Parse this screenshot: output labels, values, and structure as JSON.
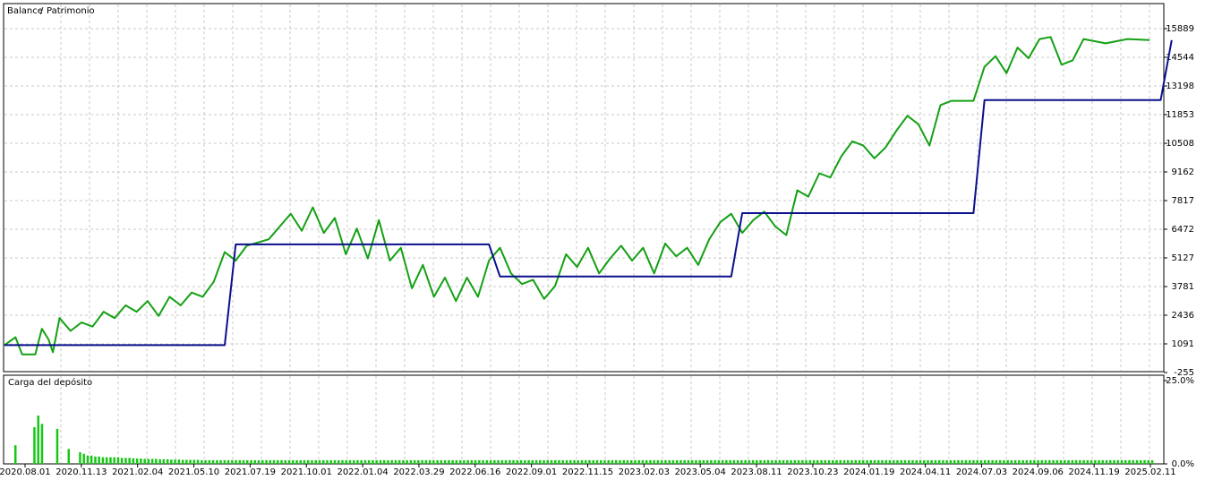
{
  "chart_data": [
    {
      "type": "line",
      "legend": {
        "labels": [
          "Balance",
          "Patrimonio"
        ],
        "placement": "top-left"
      },
      "series": [
        {
          "name": "Balance",
          "color": "#0a0f8c",
          "points": [
            [
              0,
              1030
            ],
            [
              0.5,
              1030
            ],
            [
              1.0,
              1030
            ],
            [
              1.05,
              5760
            ],
            [
              2.2,
              5760
            ],
            [
              2.25,
              4250
            ],
            [
              3.3,
              4250
            ],
            [
              3.35,
              7230
            ],
            [
              4.4,
              7230
            ],
            [
              4.45,
              12540
            ],
            [
              5.25,
              12540
            ],
            [
              5.3,
              15350
            ]
          ]
        },
        {
          "name": "Patrimonio",
          "color": "#14a014",
          "points": [
            [
              0,
              1030
            ],
            [
              0.05,
              1400
            ],
            [
              0.08,
              600
            ],
            [
              0.14,
              600
            ],
            [
              0.17,
              1800
            ],
            [
              0.2,
              1300
            ],
            [
              0.22,
              700
            ],
            [
              0.25,
              2300
            ],
            [
              0.3,
              1700
            ],
            [
              0.35,
              2100
            ],
            [
              0.4,
              1900
            ],
            [
              0.45,
              2600
            ],
            [
              0.5,
              2300
            ],
            [
              0.55,
              2900
            ],
            [
              0.6,
              2600
            ],
            [
              0.65,
              3100
            ],
            [
              0.7,
              2400
            ],
            [
              0.75,
              3300
            ],
            [
              0.8,
              2900
            ],
            [
              0.85,
              3500
            ],
            [
              0.9,
              3300
            ],
            [
              0.95,
              4000
            ],
            [
              1.0,
              5400
            ],
            [
              1.05,
              5000
            ],
            [
              1.1,
              5700
            ],
            [
              1.2,
              6000
            ],
            [
              1.25,
              6600
            ],
            [
              1.3,
              7200
            ],
            [
              1.35,
              6400
            ],
            [
              1.4,
              7500
            ],
            [
              1.45,
              6300
            ],
            [
              1.5,
              7000
            ],
            [
              1.55,
              5300
            ],
            [
              1.6,
              6500
            ],
            [
              1.65,
              5100
            ],
            [
              1.7,
              6900
            ],
            [
              1.75,
              5000
            ],
            [
              1.8,
              5600
            ],
            [
              1.85,
              3700
            ],
            [
              1.9,
              4800
            ],
            [
              1.95,
              3300
            ],
            [
              2.0,
              4200
            ],
            [
              2.05,
              3100
            ],
            [
              2.1,
              4200
            ],
            [
              2.15,
              3300
            ],
            [
              2.2,
              5000
            ],
            [
              2.25,
              5600
            ],
            [
              2.3,
              4400
            ],
            [
              2.35,
              3900
            ],
            [
              2.4,
              4100
            ],
            [
              2.45,
              3200
            ],
            [
              2.5,
              3800
            ],
            [
              2.55,
              5300
            ],
            [
              2.6,
              4700
            ],
            [
              2.65,
              5600
            ],
            [
              2.7,
              4400
            ],
            [
              2.75,
              5100
            ],
            [
              2.8,
              5700
            ],
            [
              2.85,
              5000
            ],
            [
              2.9,
              5600
            ],
            [
              2.95,
              4400
            ],
            [
              3.0,
              5800
            ],
            [
              3.05,
              5200
            ],
            [
              3.1,
              5600
            ],
            [
              3.15,
              4800
            ],
            [
              3.2,
              6000
            ],
            [
              3.25,
              6800
            ],
            [
              3.3,
              7200
            ],
            [
              3.35,
              6300
            ],
            [
              3.4,
              6900
            ],
            [
              3.45,
              7300
            ],
            [
              3.5,
              6600
            ],
            [
              3.55,
              6200
            ],
            [
              3.6,
              8300
            ],
            [
              3.65,
              8000
            ],
            [
              3.7,
              9100
            ],
            [
              3.75,
              8900
            ],
            [
              3.8,
              9900
            ],
            [
              3.85,
              10600
            ],
            [
              3.9,
              10400
            ],
            [
              3.95,
              9800
            ],
            [
              4.0,
              10300
            ],
            [
              4.05,
              11100
            ],
            [
              4.1,
              11800
            ],
            [
              4.15,
              11400
            ],
            [
              4.2,
              10400
            ],
            [
              4.25,
              12300
            ],
            [
              4.3,
              12500
            ],
            [
              4.35,
              12500
            ],
            [
              4.4,
              12500
            ],
            [
              4.45,
              14100
            ],
            [
              4.5,
              14600
            ],
            [
              4.55,
              13800
            ],
            [
              4.6,
              15000
            ],
            [
              4.65,
              14500
            ],
            [
              4.7,
              15400
            ],
            [
              4.75,
              15500
            ],
            [
              4.8,
              14200
            ],
            [
              4.85,
              14400
            ],
            [
              4.9,
              15400
            ],
            [
              5.0,
              15200
            ],
            [
              5.1,
              15400
            ],
            [
              5.2,
              15350
            ]
          ]
        }
      ],
      "y_ticks": [
        "15889",
        "14544",
        "13198",
        "11853",
        "10508",
        "9162",
        "7817",
        "6472",
        "5127",
        "3781",
        "2436",
        "1091",
        "-255"
      ],
      "ylim": [
        -255,
        15889
      ],
      "grid": true
    },
    {
      "type": "bar",
      "title": "Carga del depósito",
      "color": "#14c814",
      "y_ticks": [
        "25.0%",
        "0.0%"
      ],
      "ylim": [
        0,
        25
      ],
      "values": [
        5.6,
        0,
        0,
        0,
        0,
        11,
        14.5,
        12,
        0,
        0,
        0,
        10.5,
        0,
        0,
        4.5,
        0,
        0,
        3.5,
        3,
        2.5,
        2.5,
        2.2,
        2.2,
        2,
        2,
        2,
        2,
        2,
        1.8,
        1.8,
        1.8,
        1.7,
        1.6,
        1.6,
        1.5,
        1.5,
        1.5,
        1.5,
        1.4,
        1.4,
        1.4,
        1.3,
        1.3,
        1.3,
        1.2,
        1.2,
        1.2,
        1.2,
        1.2,
        1.1,
        1.1,
        1.1,
        1.1,
        1.1,
        1.1,
        1.1,
        1.1,
        1.1,
        1.1,
        1.1,
        1.1,
        1.1,
        1.1,
        1.1,
        1.1,
        1.1,
        1.1,
        1.1,
        1.1,
        1.1,
        1.1,
        1.1,
        1.1,
        1.1,
        1.1,
        1.1,
        1.1,
        1.1,
        1.1,
        1.1,
        1.1,
        1.1,
        1.1,
        1.1,
        1.1,
        1.1,
        1.1,
        1.1,
        1.1,
        1.1,
        1.1,
        1.1,
        1.1,
        1.1,
        1.1,
        1.1,
        1.1,
        1.1,
        1.1,
        1.1,
        1.1,
        1.1,
        1.1,
        1.1,
        1.1,
        1.1,
        1.1,
        1.1,
        1.1,
        1.1,
        1.1,
        1.1,
        1.1,
        1.1,
        1.1,
        1.1,
        1.1,
        1.1,
        1.1,
        1.1,
        1.1,
        1.1,
        1.1,
        1.1,
        1.1,
        1.1,
        1.1,
        1.1,
        1.1,
        1.1,
        1.1,
        1.1,
        1.1,
        1.1,
        1.1,
        1.1,
        1.1,
        1.1,
        1.1,
        1.1,
        1.1,
        1.1,
        1.1,
        1.1,
        1.1,
        1.1,
        1.1,
        1.1,
        1.1,
        1.1,
        1.1,
        1.1,
        1.1,
        1.1,
        1.1,
        1.1,
        1.1,
        1.1,
        1.1,
        1.1,
        1.1,
        1.1,
        1.1,
        1.1,
        1.1,
        1.1,
        1.1,
        1.1,
        1.1,
        1.1,
        1.1,
        1.1,
        1.1,
        1.1,
        1.1,
        1.1,
        1.1,
        1.1,
        1.1,
        1.1,
        1.1,
        1.1,
        1.1,
        1.1,
        1.1,
        1.1,
        1.1,
        1.1,
        1.1,
        1.1,
        1.1,
        1.1,
        1.1,
        1.1,
        1.1,
        1.1,
        1.1,
        1.1,
        1.1,
        1.1,
        1.1,
        1.1,
        1.1,
        1.1,
        1.1,
        1.1,
        1.1,
        1.1,
        1.1,
        1.1,
        1.1,
        1.1,
        1.1,
        1.1,
        1.1,
        1.1,
        1.1,
        1.1,
        1.1,
        1.1,
        1.1,
        1.1,
        1.1,
        1.1,
        1.1,
        1.1,
        1.1,
        1.1,
        1.1,
        1.1,
        1.1,
        1.1,
        1.1,
        1.1,
        1.1,
        1.1,
        1.1,
        1.1,
        1.1,
        1.1,
        1.1,
        1.1,
        1.1,
        1.1,
        1.1,
        1.1,
        1.1,
        1.1,
        1.1,
        1.1,
        1.1,
        1.1,
        1.1,
        1.1,
        1.1,
        1.1,
        1.1,
        1.1,
        1.1,
        1.1,
        1.1,
        1.1,
        1.1,
        1.1,
        1.1,
        1.1,
        1.1,
        1.1,
        1.1,
        1.1,
        1.1,
        1.1,
        1.1,
        1.1,
        1.1,
        1.1,
        1.1,
        1.1,
        1.1,
        1.1,
        1.1,
        1.1,
        1.1,
        1.1,
        1.1,
        1.1,
        1.1,
        1.1,
        1.1,
        1.1,
        1.1,
        1.1,
        1.1,
        1.1,
        1.1,
        1.1,
        1.1,
        1.1,
        1.1,
        1.1
      ]
    }
  ],
  "x_ticks": [
    "2020.08.01",
    "2020.11.13",
    "2021.02.04",
    "2021.05.10",
    "2021.07.19",
    "2021.10.01",
    "2022.01.04",
    "2022.03.29",
    "2022.06.16",
    "2022.09.01",
    "2022.11.15",
    "2023.02.03",
    "2023.05.04",
    "2023.08.11",
    "2023.10.23",
    "2024.01.19",
    "2024.04.11",
    "2024.07.03",
    "2024.09.06",
    "2024.11.19",
    "2025.02.11"
  ],
  "colors": {
    "grid": "#c8c8c8",
    "frame": "#000000",
    "background": "#ffffff"
  }
}
